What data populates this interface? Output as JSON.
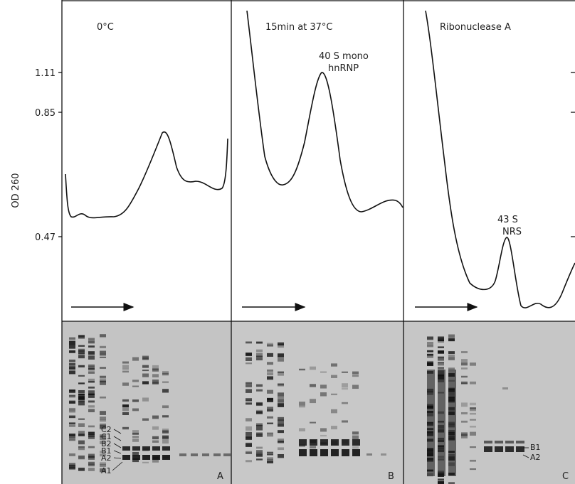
{
  "figure": {
    "y_axis_label": "OD 260",
    "y_tick_labels": [
      "1.11",
      "0.85",
      "0.47"
    ],
    "panels": [
      {
        "title": "0°C",
        "letter": "A",
        "band_labels": [
          "C2",
          "C1",
          "B2",
          "B1",
          "A2",
          "A1"
        ]
      },
      {
        "title": "15min at 37°C",
        "letter": "B",
        "peak_label": [
          "40 S mono",
          "hnRNP"
        ]
      },
      {
        "title": "Ribonuclease A",
        "letter": "C",
        "peak_label": [
          "43 S",
          "NRS"
        ],
        "band_labels": [
          "B1",
          "A2"
        ]
      }
    ]
  }
}
